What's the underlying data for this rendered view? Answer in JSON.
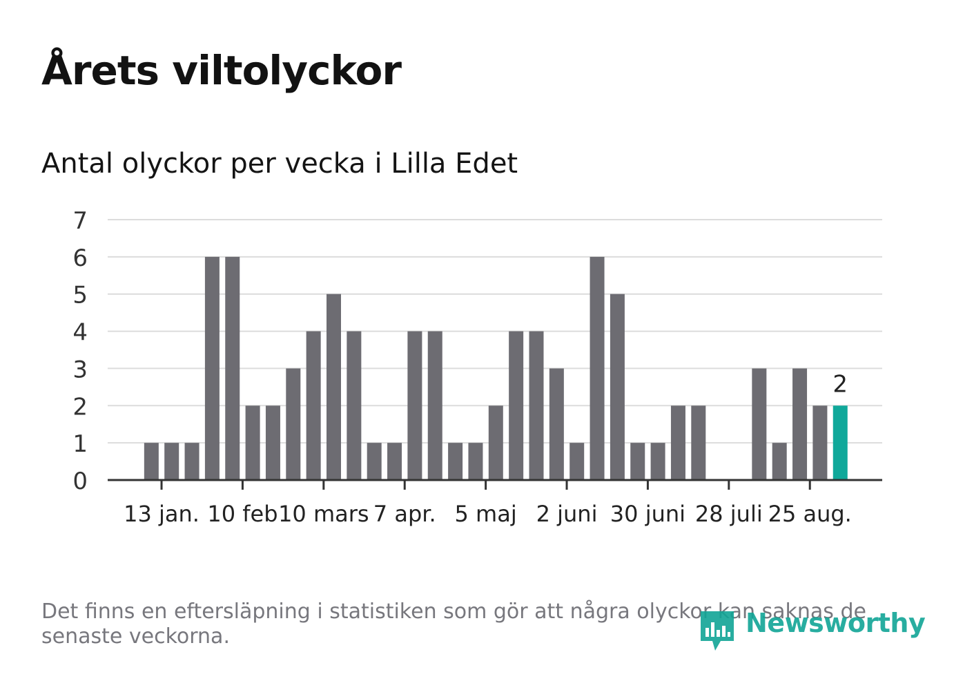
{
  "title": "Årets viltolyckor",
  "subtitle": "Antal olyckor per vecka i Lilla Edet",
  "footnote": "Det finns en eftersläpning i statistiken som gör att några olyckor kan saknas de senaste veckorna.",
  "brand": {
    "name": "Newsworthy",
    "icon": "bar-chart-speech-bubble-icon",
    "color": "#11a596"
  },
  "colors": {
    "bar": "#6d6c72",
    "highlight": "#10a89a",
    "grid": "#dcdcdc",
    "axis": "#333333"
  },
  "chart_data": {
    "type": "bar",
    "title": "Årets viltolyckor",
    "subtitle": "Antal olyckor per vecka i Lilla Edet",
    "xlabel": "",
    "ylabel": "",
    "ylim": [
      0,
      7
    ],
    "yticks": [
      0,
      1,
      2,
      3,
      4,
      5,
      6,
      7
    ],
    "grid": true,
    "x_tick_labels": [
      {
        "label": "13 jan.",
        "week_index": 1
      },
      {
        "label": "10 feb",
        "week_index": 5
      },
      {
        "label": "10 mars",
        "week_index": 9
      },
      {
        "label": "7 apr.",
        "week_index": 13
      },
      {
        "label": "5 maj",
        "week_index": 17
      },
      {
        "label": "2 juni",
        "week_index": 21
      },
      {
        "label": "30 juni",
        "week_index": 25
      },
      {
        "label": "28 juli",
        "week_index": 29
      },
      {
        "label": "25 aug.",
        "week_index": 33
      }
    ],
    "values": [
      0,
      1,
      1,
      1,
      6,
      6,
      2,
      2,
      3,
      4,
      5,
      4,
      1,
      1,
      4,
      4,
      1,
      1,
      2,
      4,
      4,
      3,
      1,
      6,
      5,
      1,
      1,
      2,
      2,
      0,
      0,
      3,
      1,
      3,
      2,
      2
    ],
    "highlight_last": true,
    "last_value_label": "2"
  }
}
